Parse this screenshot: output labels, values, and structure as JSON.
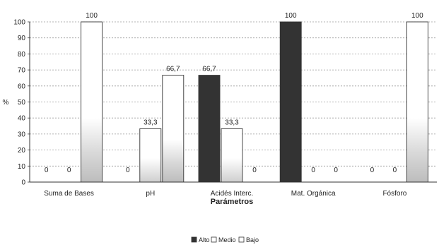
{
  "chart_data": {
    "type": "bar",
    "title": "",
    "xlabel": "Parámetros",
    "ylabel": "%",
    "ylim": [
      0,
      100
    ],
    "yticks": [
      "0",
      "10",
      "20",
      "30",
      "40",
      "50",
      "60",
      "70",
      "80",
      "90",
      "100"
    ],
    "grid": true,
    "legend_position": "bottom",
    "categories": [
      "Suma de Bases",
      "pH",
      "Acidés Interc.",
      "Mat. Orgánica",
      "Fósforo"
    ],
    "series": [
      {
        "name": "Alto",
        "values": [
          0,
          0,
          66.7,
          100,
          0
        ],
        "labels": [
          "0",
          "0",
          "66,7",
          "100",
          "0"
        ],
        "color": "#333333"
      },
      {
        "name": "Medio",
        "values": [
          0,
          33.3,
          33.3,
          0,
          0
        ],
        "labels": [
          "0",
          "33,3",
          "33,3",
          "0",
          "0"
        ],
        "color": "#ffffff"
      },
      {
        "name": "Bajo",
        "values": [
          100,
          66.7,
          0,
          0,
          100
        ],
        "labels": [
          "100",
          "66,7",
          "0",
          "0",
          "100"
        ],
        "color": "#ffffff"
      }
    ]
  }
}
